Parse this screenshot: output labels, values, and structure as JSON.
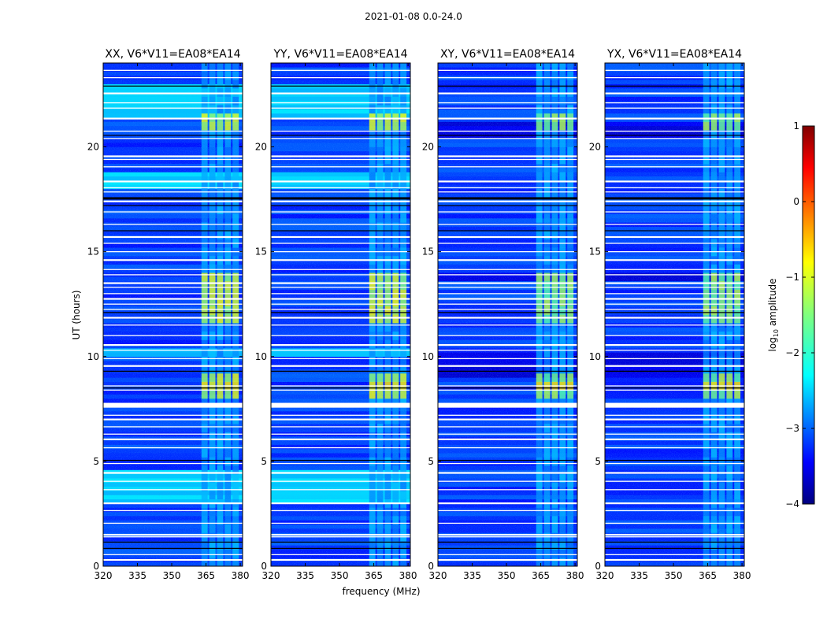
{
  "figure": {
    "suptitle": "2021-01-08 0.0-24.0"
  },
  "chart_data": {
    "type": "heatmap",
    "xlabel": "frequency (MHz)",
    "ylabel": "UT (hours)",
    "xlim": [
      320,
      381
    ],
    "ylim": [
      0,
      24
    ],
    "xticks": [
      320,
      335,
      350,
      365,
      380
    ],
    "yticks": [
      0,
      5,
      10,
      15,
      20
    ],
    "colorbar": {
      "label": "log10 amplitude",
      "range": [
        -4,
        1
      ],
      "ticks": [
        1,
        0,
        -1,
        -2,
        -3,
        -4
      ],
      "tick_labels": [
        "1",
        "0",
        "−1",
        "−2",
        "−3",
        "−4"
      ],
      "colormap": "jet"
    },
    "panels": [
      {
        "title": "XX, V6*V11=EA08*EA14",
        "pol": "XX"
      },
      {
        "title": "YY, V6*V11=EA08*EA14",
        "pol": "YY"
      },
      {
        "title": "XY, V6*V11=EA08*EA14",
        "pol": "XY"
      },
      {
        "title": "YX, V6*V11=EA08*EA14",
        "pol": "YX"
      }
    ],
    "flagged_ut_hours": [
      0.3,
      0.55,
      1.4,
      1.5,
      2.05,
      2.65,
      3.0,
      3.65,
      4.05,
      4.45,
      4.9,
      5.65,
      6.05,
      6.3,
      6.65,
      7.0,
      7.2,
      7.6,
      7.75,
      8.4,
      8.6,
      9.55,
      9.9,
      10.3,
      10.55,
      11.0,
      11.5,
      11.85,
      12.25,
      12.5,
      12.75,
      13.0,
      13.3,
      13.5,
      13.9,
      14.15,
      14.6,
      15.0,
      15.4,
      15.7,
      16.3,
      16.9,
      17.4,
      17.85,
      18.05,
      18.35,
      19.05,
      19.4,
      19.55,
      20.4,
      20.75,
      21.35,
      21.85,
      22.1,
      22.55,
      23.3,
      23.65
    ],
    "bright_band_mhz": [
      363,
      380
    ],
    "high_amplitude_ut_hours": [
      [
        8.1,
        8.9
      ],
      [
        11.6,
        12.6
      ],
      [
        13.2,
        13.8
      ],
      [
        21.0,
        21.4
      ]
    ]
  }
}
